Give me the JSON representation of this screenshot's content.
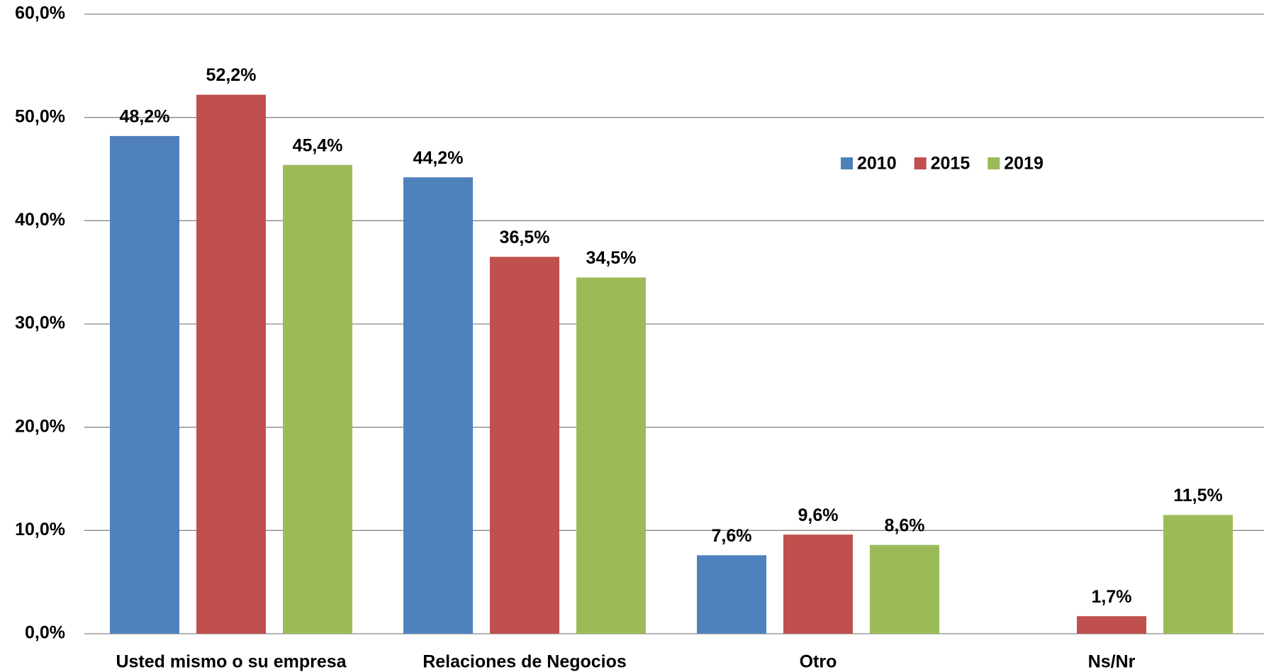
{
  "chart_data": {
    "type": "bar",
    "categories": [
      "Usted mismo o su empresa",
      "Relaciones de Negocios",
      "Otro",
      "Ns/Nr"
    ],
    "series": [
      {
        "name": "2010",
        "color": "#4f81bd",
        "values": [
          48.2,
          44.2,
          7.6,
          null
        ],
        "value_labels": [
          "48,2%",
          "44,2%",
          "7,6%",
          null
        ]
      },
      {
        "name": "2015",
        "color": "#c0504d",
        "values": [
          52.2,
          36.5,
          9.6,
          1.7
        ],
        "value_labels": [
          "52,2%",
          "36,5%",
          "9,6%",
          "1,7%"
        ]
      },
      {
        "name": "2019",
        "color": "#9bbb59",
        "values": [
          45.4,
          34.5,
          8.6,
          11.5
        ],
        "value_labels": [
          "45,4%",
          "34,5%",
          "8,6%",
          "11,5%"
        ]
      }
    ],
    "ylim": [
      0,
      60
    ],
    "yticks": [
      {
        "value": 0,
        "label": "0,0%"
      },
      {
        "value": 10,
        "label": "10,0%"
      },
      {
        "value": 20,
        "label": "20,0%"
      },
      {
        "value": 30,
        "label": "30,0%"
      },
      {
        "value": 40,
        "label": "40,0%"
      },
      {
        "value": 50,
        "label": "50,0%"
      },
      {
        "value": 60,
        "label": "60,0%"
      }
    ],
    "grid": true,
    "legend": "top-right"
  }
}
